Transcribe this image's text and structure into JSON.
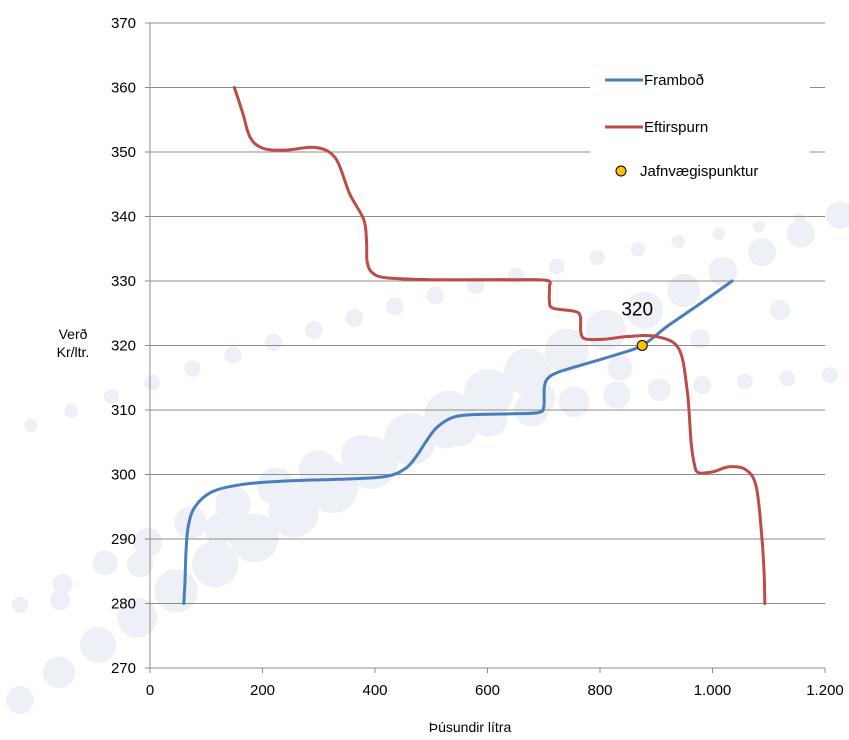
{
  "chart_data": {
    "type": "line",
    "xlabel": "Þúsundir lítra",
    "ylabel_lines": [
      "Verð",
      "Kr/ltr."
    ],
    "xlim": [
      0,
      1200
    ],
    "ylim": [
      270,
      370
    ],
    "x_ticks": [
      {
        "value": 0,
        "label": "0"
      },
      {
        "value": 200,
        "label": "200"
      },
      {
        "value": 400,
        "label": "400"
      },
      {
        "value": 600,
        "label": "600"
      },
      {
        "value": 800,
        "label": "800"
      },
      {
        "value": 1000,
        "label": "1.000"
      },
      {
        "value": 1200,
        "label": "1.200"
      }
    ],
    "y_ticks": [
      {
        "value": 270,
        "label": "270"
      },
      {
        "value": 280,
        "label": "280"
      },
      {
        "value": 290,
        "label": "290"
      },
      {
        "value": 300,
        "label": "300"
      },
      {
        "value": 310,
        "label": "310"
      },
      {
        "value": 320,
        "label": "320"
      },
      {
        "value": 330,
        "label": "330"
      },
      {
        "value": 340,
        "label": "340"
      },
      {
        "value": 350,
        "label": "350"
      },
      {
        "value": 360,
        "label": "360"
      },
      {
        "value": 370,
        "label": "370"
      }
    ],
    "grid": "horizontal",
    "legend_position": "top-right",
    "series": [
      {
        "name": "Framboð",
        "color": "#4a7ebb",
        "points": [
          [
            60,
            280
          ],
          [
            62,
            283
          ],
          [
            64,
            288
          ],
          [
            68,
            292
          ],
          [
            80,
            295
          ],
          [
            110,
            297.3
          ],
          [
            160,
            298.4
          ],
          [
            240,
            299
          ],
          [
            350,
            299.3
          ],
          [
            420,
            299.7
          ],
          [
            455,
            301
          ],
          [
            475,
            303
          ],
          [
            490,
            305
          ],
          [
            510,
            307.3
          ],
          [
            540,
            308.9
          ],
          [
            580,
            309.3
          ],
          [
            640,
            309.4
          ],
          [
            690,
            309.6
          ],
          [
            700,
            310.5
          ],
          [
            701,
            313.5
          ],
          [
            708,
            315
          ],
          [
            730,
            316
          ],
          [
            780,
            317.3
          ],
          [
            830,
            318.6
          ],
          [
            875,
            320
          ],
          [
            920,
            323
          ],
          [
            975,
            326.3
          ],
          [
            1035,
            330
          ]
        ]
      },
      {
        "name": "Eftirspurn",
        "color": "#be4b48",
        "points": [
          [
            150,
            360
          ],
          [
            165,
            356
          ],
          [
            178,
            352.3
          ],
          [
            200,
            350.6
          ],
          [
            240,
            350.3
          ],
          [
            295,
            350.7
          ],
          [
            330,
            349
          ],
          [
            355,
            343.5
          ],
          [
            380,
            339.5
          ],
          [
            385,
            336
          ],
          [
            386,
            333
          ],
          [
            395,
            331.3
          ],
          [
            420,
            330.5
          ],
          [
            500,
            330.2
          ],
          [
            640,
            330.2
          ],
          [
            705,
            330.1
          ],
          [
            710,
            329
          ],
          [
            710,
            327
          ],
          [
            716,
            325.8
          ],
          [
            755,
            325.3
          ],
          [
            765,
            324.5
          ],
          [
            766,
            322
          ],
          [
            775,
            321
          ],
          [
            810,
            321
          ],
          [
            850,
            321.4
          ],
          [
            900,
            321.4
          ],
          [
            940,
            319.5
          ],
          [
            955,
            313
          ],
          [
            962,
            305
          ],
          [
            968,
            301.5
          ],
          [
            975,
            300.3
          ],
          [
            1000,
            300.4
          ],
          [
            1030,
            301.2
          ],
          [
            1060,
            300.7
          ],
          [
            1078,
            298
          ],
          [
            1088,
            290
          ],
          [
            1092,
            284
          ],
          [
            1093,
            280
          ]
        ]
      }
    ],
    "equilibrium": {
      "name": "Jafnvægispunktur",
      "x": 875,
      "y": 320,
      "label": "320",
      "color": "#ffc000"
    }
  }
}
